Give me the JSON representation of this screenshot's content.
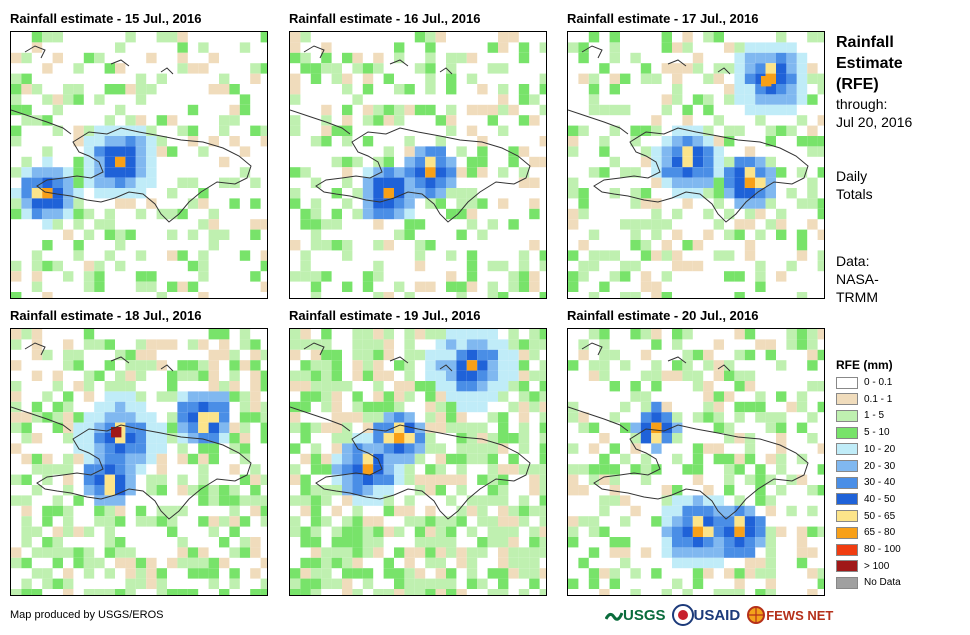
{
  "panels": [
    {
      "title": "Rainfall estimate - 15 Jul., 2016"
    },
    {
      "title": "Rainfall estimate - 16 Jul., 2016"
    },
    {
      "title": "Rainfall estimate - 17 Jul., 2016"
    },
    {
      "title": "Rainfall estimate - 18 Jul., 2016"
    },
    {
      "title": "Rainfall estimate - 19 Jul., 2016"
    },
    {
      "title": "Rainfall estimate - 20 Jul., 2016"
    }
  ],
  "info": {
    "title_1": "Rainfall",
    "title_2": "Estimate",
    "title_3": "(RFE)",
    "through_label": "through:",
    "through_date": "Jul 20, 2016",
    "totals_1": "Daily",
    "totals_2": "Totals",
    "data_1": "Data:",
    "data_2": "NASA-",
    "data_3": "TRMM"
  },
  "legend": {
    "title": "RFE (mm)",
    "items": [
      {
        "label": "0 - 0.1",
        "color": "#ffffff"
      },
      {
        "label": "0.1 - 1",
        "color": "#f0dcbc"
      },
      {
        "label": "1 - 5",
        "color": "#bff0b0"
      },
      {
        "label": "5 - 10",
        "color": "#78e36a"
      },
      {
        "label": "10 - 20",
        "color": "#c0ecf8"
      },
      {
        "label": "20 - 30",
        "color": "#80b8f0"
      },
      {
        "label": "30 - 40",
        "color": "#4a8ee6"
      },
      {
        "label": "40 - 50",
        "color": "#1f62d8"
      },
      {
        "label": "50 - 65",
        "color": "#fce48a"
      },
      {
        "label": "65 - 80",
        "color": "#f8a018"
      },
      {
        "label": "80 - 100",
        "color": "#f03c10"
      },
      {
        "label": "> 100",
        "color": "#a01818"
      },
      {
        "label": "No Data",
        "color": "#a0a0a0"
      }
    ]
  },
  "footer": {
    "credit": "Map produced by USGS/EROS",
    "logo_usgs": "USGS",
    "logo_usaid": "USAID",
    "logo_fews": "FEWS NET"
  }
}
